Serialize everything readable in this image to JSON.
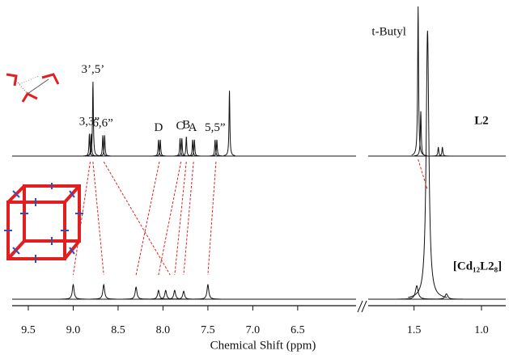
{
  "chart_data": {
    "type": "nmr",
    "xlabel": "Chemical Shift (ppm)",
    "segments": [
      {
        "xlim": [
          9.68,
          5.85
        ],
        "xticks": [
          9.5,
          {
            "value": 9,
            "label": "9.0"
          },
          8.5,
          {
            "value": 8,
            "label": "8.0"
          },
          7.5,
          {
            "value": 7,
            "label": "7.0"
          },
          6.5
        ]
      },
      {
        "xlim": [
          1.84,
          0.82
        ],
        "xticks": [
          1.5,
          {
            "value": 1,
            "label": "1.0"
          }
        ]
      }
    ],
    "series": [
      {
        "name": "L2",
        "color": "#111111",
        "linewidth": 0.004,
        "ylim": [
          0,
          100
        ],
        "x": [
          8.82,
          8.8,
          8.78,
          8.67,
          8.65,
          8.05,
          8.03,
          7.81,
          7.79,
          7.74,
          7.67,
          7.65,
          7.42,
          7.4,
          7.26,
          1.47,
          1.45,
          1.32,
          1.29
        ],
        "values": [
          15,
          15,
          50,
          14,
          14,
          11,
          11,
          12,
          12,
          13,
          11,
          11,
          11,
          11,
          44,
          100,
          30,
          6,
          6
        ],
        "labels": [
          "3,3”",
          null,
          "3’,5’",
          "6,6”",
          null,
          "D",
          null,
          "C",
          null,
          "B",
          "A",
          null,
          "5,5”",
          null,
          null,
          "t-Butyl",
          null,
          null,
          null
        ]
      },
      {
        "name": "[Cd₁₂L2₈]",
        "color": "#111111",
        "linewidth": 0.012,
        "ylim": [
          0,
          100
        ],
        "x": [
          9.0,
          8.66,
          8.3,
          8.05,
          7.97,
          7.87,
          7.77,
          7.5,
          1.48,
          1.4,
          1.26
        ],
        "values": [
          5.4,
          5.4,
          4.5,
          3.3,
          3.3,
          3.3,
          3,
          5.4,
          5,
          100,
          2
        ]
      }
    ],
    "correlations": [
      [
        8.81,
        9.0
      ],
      [
        8.78,
        8.66
      ],
      [
        8.66,
        7.92
      ],
      [
        8.04,
        8.3
      ],
      [
        7.8,
        8.05
      ],
      [
        7.74,
        7.87
      ],
      [
        7.66,
        7.77
      ],
      [
        7.41,
        7.5
      ],
      [
        1.47,
        1.4
      ]
    ],
    "correlation_color": "#e02020"
  }
}
